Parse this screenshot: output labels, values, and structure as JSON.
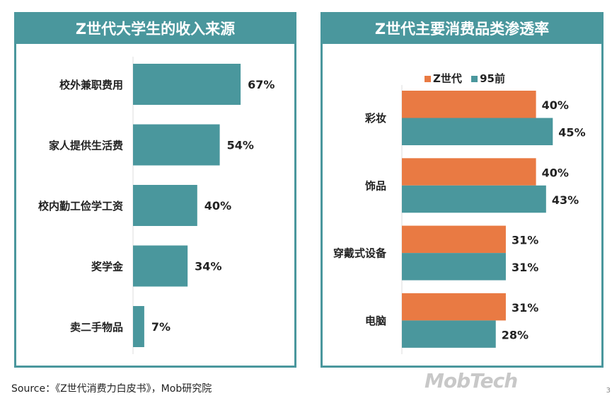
{
  "chart_data": [
    {
      "type": "bar",
      "orientation": "horizontal",
      "title": "Z世代大学生的收入来源",
      "categories": [
        "校外兼职费用",
        "家人提供生活费",
        "校内勤工俭学工资",
        "奖学金",
        "卖二手物品"
      ],
      "values": [
        67,
        54,
        40,
        34,
        7
      ],
      "labels": [
        "67%",
        "54%",
        "40%",
        "34%",
        "7%"
      ],
      "color": "#4a979d"
    },
    {
      "type": "bar",
      "orientation": "horizontal",
      "title": "Z世代主要消费品类渗透率",
      "categories": [
        "彩妆",
        "饰品",
        "穿戴式设备",
        "电脑"
      ],
      "series": [
        {
          "name": "Z世代",
          "values": [
            40,
            40,
            31,
            31
          ],
          "labels": [
            "40%",
            "40%",
            "31%",
            "31%"
          ],
          "color": "#e97a43"
        },
        {
          "name": "95前",
          "values": [
            45,
            43,
            31,
            28
          ],
          "labels": [
            "45%",
            "43%",
            "31%",
            "28%"
          ],
          "color": "#4a979d"
        }
      ],
      "legend": "top-center"
    }
  ],
  "watermark": "MobTech",
  "source": "Source：《Z世代消费力白皮书》，Mob研究院",
  "page_number": "3"
}
